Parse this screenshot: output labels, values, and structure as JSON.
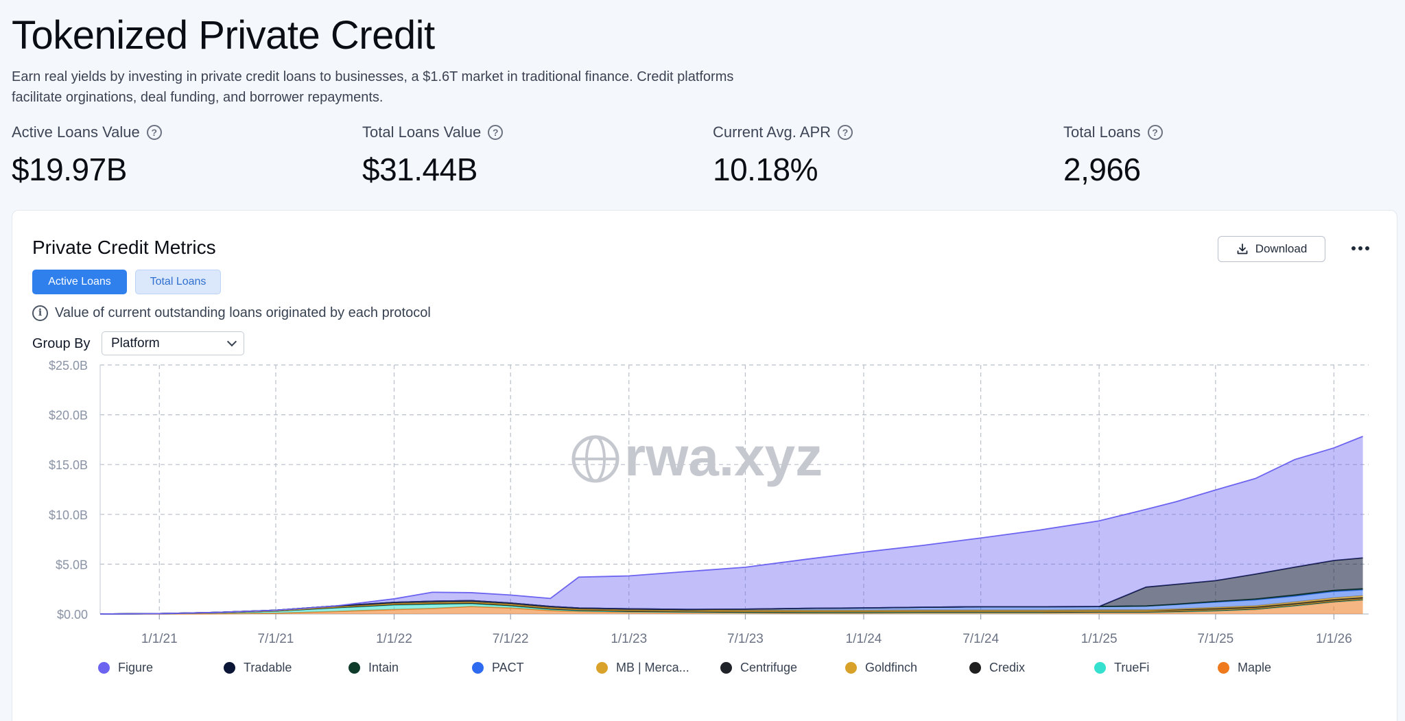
{
  "header": {
    "title": "Tokenized Private Credit",
    "description": "Earn real yields by investing in private credit loans to businesses, a $1.6T market in traditional finance. Credit platforms facilitate orginations, deal funding, and borrower repayments."
  },
  "stats": [
    {
      "label": "Active Loans Value",
      "value": "$19.97B"
    },
    {
      "label": "Total Loans Value",
      "value": "$31.44B"
    },
    {
      "label": "Current Avg. APR",
      "value": "10.18%"
    },
    {
      "label": "Total Loans",
      "value": "2,966"
    }
  ],
  "card": {
    "title": "Private Credit Metrics",
    "download_label": "Download",
    "tabs": {
      "active": "Active Loans",
      "inactive": "Total Loans"
    },
    "info_text": "Value of current outstanding loans originated by each protocol",
    "group_by_label": "Group By",
    "group_by_value": "Platform",
    "watermark": "rwa.xyz"
  },
  "colors": {
    "Figure": "#6c63f0",
    "Tradable": "#0b1536",
    "Intain": "#0e3b2a",
    "PACT": "#2f6bf0",
    "MB | Merca...": "#d9a32b",
    "Centrifuge": "#1f2228",
    "Goldfinch": "#d8a12a",
    "Credix": "#202020",
    "TrueFi": "#35e0cf",
    "Maple": "#ee7a1d"
  },
  "chart_data": {
    "type": "area",
    "stacked": true,
    "x_ticks": [
      "1/1/21",
      "7/1/21",
      "1/1/22",
      "7/1/22",
      "1/1/23",
      "7/1/23",
      "1/1/24",
      "7/1/24",
      "1/1/25",
      "7/1/25",
      "1/1/26"
    ],
    "y_ticks": [
      "$0.00",
      "$5.0B",
      "$10.0B",
      "$15.0B",
      "$20.0B",
      "$25.0B"
    ],
    "ylim": [
      0,
      25
    ],
    "yunit": "$B",
    "grid": true,
    "legend_position": "bottom",
    "x": [
      "2020-10-01",
      "2021-01-01",
      "2021-04-01",
      "2021-07-01",
      "2021-10-01",
      "2022-01-01",
      "2022-03-01",
      "2022-05-01",
      "2022-07-01",
      "2022-09-01",
      "2022-10-15",
      "2023-01-01",
      "2023-04-01",
      "2023-07-01",
      "2023-10-01",
      "2024-01-01",
      "2024-04-01",
      "2024-07-01",
      "2024-10-01",
      "2025-01-01",
      "2025-03-15",
      "2025-05-01",
      "2025-07-01",
      "2025-09-01",
      "2025-11-01",
      "2026-01-01",
      "2026-02-15"
    ],
    "series": [
      {
        "name": "Maple",
        "values": [
          0,
          0.01,
          0.03,
          0.08,
          0.25,
          0.45,
          0.55,
          0.75,
          0.6,
          0.35,
          0.25,
          0.18,
          0.15,
          0.12,
          0.1,
          0.1,
          0.12,
          0.12,
          0.12,
          0.15,
          0.15,
          0.2,
          0.3,
          0.45,
          0.8,
          1.2,
          1.4
        ]
      },
      {
        "name": "TrueFi",
        "values": [
          0,
          0.02,
          0.1,
          0.2,
          0.35,
          0.45,
          0.42,
          0.28,
          0.2,
          0.12,
          0.08,
          0.05,
          0.04,
          0.03,
          0.03,
          0.03,
          0.03,
          0.03,
          0.03,
          0.03,
          0.03,
          0.03,
          0.03,
          0.03,
          0.03,
          0.03,
          0.03
        ]
      },
      {
        "name": "Credix",
        "values": [
          0,
          0,
          0,
          0.02,
          0.04,
          0.05,
          0.06,
          0.06,
          0.06,
          0.05,
          0.05,
          0.05,
          0.04,
          0.04,
          0.04,
          0.04,
          0.04,
          0.04,
          0.04,
          0.04,
          0.04,
          0.04,
          0.04,
          0.04,
          0.04,
          0.04,
          0.04
        ]
      },
      {
        "name": "Goldfinch",
        "values": [
          0,
          0,
          0.01,
          0.03,
          0.06,
          0.08,
          0.1,
          0.1,
          0.1,
          0.1,
          0.09,
          0.09,
          0.08,
          0.08,
          0.08,
          0.07,
          0.07,
          0.07,
          0.07,
          0.06,
          0.06,
          0.06,
          0.06,
          0.06,
          0.06,
          0.06,
          0.06
        ]
      },
      {
        "name": "Centrifuge",
        "values": [
          0,
          0.01,
          0.02,
          0.05,
          0.1,
          0.14,
          0.15,
          0.15,
          0.14,
          0.14,
          0.13,
          0.13,
          0.12,
          0.12,
          0.12,
          0.12,
          0.12,
          0.12,
          0.12,
          0.12,
          0.12,
          0.12,
          0.12,
          0.12,
          0.12,
          0.12,
          0.12
        ]
      },
      {
        "name": "MB | Merca...",
        "values": [
          0,
          0,
          0,
          0,
          0,
          0,
          0,
          0,
          0,
          0,
          0,
          0,
          0,
          0,
          0,
          0,
          0,
          0,
          0,
          0,
          0,
          0.05,
          0.1,
          0.12,
          0.15,
          0.17,
          0.18
        ]
      },
      {
        "name": "PACT",
        "values": [
          0,
          0,
          0,
          0,
          0,
          0,
          0,
          0,
          0,
          0,
          0,
          0.02,
          0.03,
          0.1,
          0.2,
          0.25,
          0.3,
          0.35,
          0.35,
          0.35,
          0.4,
          0.45,
          0.55,
          0.6,
          0.6,
          0.65,
          0.6
        ]
      },
      {
        "name": "Intain",
        "values": [
          0,
          0,
          0,
          0,
          0,
          0,
          0,
          0,
          0,
          0,
          0,
          0,
          0,
          0,
          0,
          0,
          0,
          0,
          0,
          0,
          0,
          0.03,
          0.05,
          0.08,
          0.1,
          0.1,
          0.1
        ]
      },
      {
        "name": "Tradable",
        "values": [
          0,
          0,
          0,
          0,
          0,
          0,
          0,
          0,
          0,
          0,
          0,
          0,
          0,
          0,
          0,
          0,
          0,
          0,
          0,
          0,
          1.9,
          2.0,
          2.1,
          2.5,
          2.8,
          3.0,
          3.1
        ]
      },
      {
        "name": "Figure",
        "values": [
          0,
          0,
          0,
          0,
          0,
          0.35,
          0.9,
          0.8,
          0.8,
          0.8,
          3.1,
          3.3,
          3.8,
          4.2,
          4.9,
          5.6,
          6.2,
          6.9,
          7.7,
          8.6,
          7.8,
          8.3,
          9.1,
          9.6,
          10.8,
          11.3,
          12.2
        ]
      }
    ]
  }
}
